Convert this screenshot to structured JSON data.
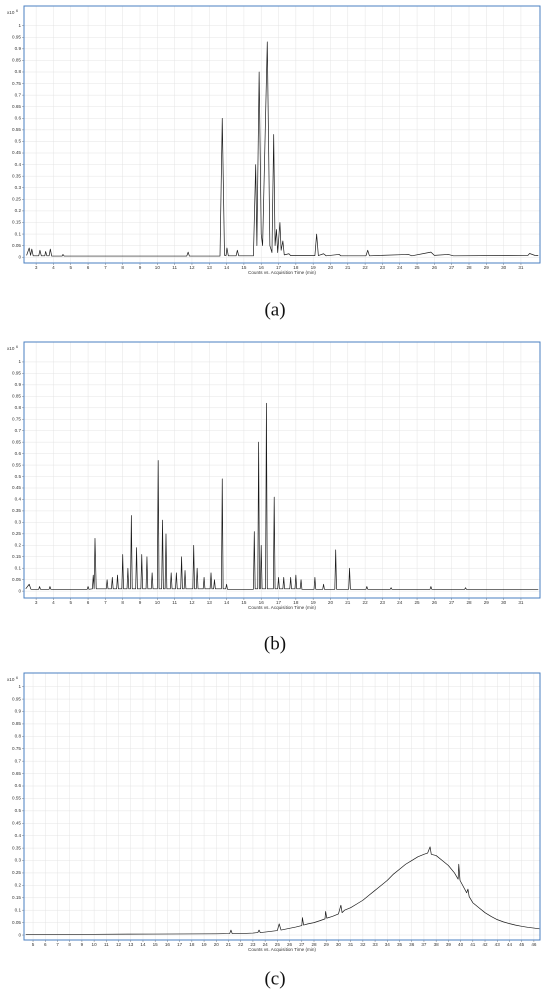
{
  "chart_data": [
    {
      "type": "line",
      "caption": "(a)",
      "xlabel": "Counts vs. Acquisition Time (min)",
      "y_multiplier": "x10",
      "y_multiplier_exponent": "6",
      "grid": true,
      "color": "#1a1a1a",
      "xlim": [
        2.3,
        32.1
      ],
      "ylim": [
        -0.025,
        1.085
      ],
      "xticks": [
        3,
        4,
        5,
        6,
        7,
        8,
        9,
        10,
        11,
        12,
        13,
        14,
        15,
        16,
        17,
        18,
        19,
        20,
        21,
        22,
        23,
        24,
        25,
        26,
        27,
        28,
        29,
        30,
        31
      ],
      "yticks": [
        0,
        0.05,
        0.1,
        0.15,
        0.2,
        0.25,
        0.3,
        0.35,
        0.4,
        0.45,
        0.5,
        0.55,
        0.6,
        0.65,
        0.7,
        0.75,
        0.8,
        0.85,
        0.9,
        0.95,
        1
      ],
      "x": [
        2.45,
        2.6,
        2.68,
        2.75,
        2.83,
        3.15,
        3.22,
        3.3,
        3.5,
        3.55,
        3.62,
        3.75,
        3.82,
        3.9,
        4.5,
        4.55,
        4.62,
        11.7,
        11.78,
        11.85,
        13.62,
        13.75,
        13.88,
        13.97,
        14.02,
        14.1,
        14.55,
        14.62,
        14.7,
        15.55,
        15.68,
        15.75,
        15.88,
        16.0,
        16.08,
        16.35,
        16.5,
        16.62,
        16.72,
        16.8,
        16.88,
        16.95,
        17.08,
        17.15,
        17.25,
        17.33,
        17.6,
        17.7,
        19.1,
        19.2,
        19.3,
        19.6,
        19.75,
        20.5,
        20.6,
        22.05,
        22.15,
        22.25,
        24.5,
        24.7,
        25.8,
        26.0,
        26.8,
        27.1,
        31.4,
        31.5,
        31.8,
        32
      ],
      "values": [
        0.008,
        0.04,
        0.008,
        0.035,
        0.006,
        0.006,
        0.03,
        0.006,
        0.006,
        0.025,
        0.006,
        0.006,
        0.035,
        0.005,
        0.005,
        0.012,
        0.005,
        0.005,
        0.022,
        0.005,
        0.005,
        0.6,
        0.008,
        0.008,
        0.04,
        0.006,
        0.006,
        0.03,
        0.006,
        0.006,
        0.4,
        0.05,
        0.8,
        0.1,
        0.05,
        0.93,
        0.05,
        0.02,
        0.53,
        0.05,
        0.12,
        0.02,
        0.15,
        0.03,
        0.07,
        0.01,
        0.015,
        0.007,
        0.007,
        0.1,
        0.007,
        0.015,
        0.006,
        0.012,
        0.006,
        0.006,
        0.03,
        0.006,
        0.012,
        0.006,
        0.022,
        0.008,
        0.012,
        0.006,
        0.008,
        0.016,
        0.008,
        0.007
      ]
    },
    {
      "type": "line",
      "caption": "(b)",
      "xlabel": "Counts vs. Acquisition Time (min)",
      "y_multiplier": "x10",
      "y_multiplier_exponent": "6",
      "grid": true,
      "color": "#1a1a1a",
      "xlim": [
        2.3,
        32.1
      ],
      "ylim": [
        -0.03,
        1.087
      ],
      "xticks": [
        3,
        4,
        5,
        6,
        7,
        8,
        9,
        10,
        11,
        12,
        13,
        14,
        15,
        16,
        17,
        18,
        19,
        20,
        21,
        22,
        23,
        24,
        25,
        26,
        27,
        28,
        29,
        30,
        31
      ],
      "yticks": [
        0,
        0.05,
        0.1,
        0.15,
        0.2,
        0.25,
        0.3,
        0.35,
        0.4,
        0.45,
        0.5,
        0.55,
        0.6,
        0.65,
        0.7,
        0.75,
        0.8,
        0.85,
        0.9,
        0.95,
        1
      ],
      "x": [
        2.4,
        2.6,
        2.7,
        3.15,
        3.2,
        3.25,
        3.75,
        3.8,
        3.85,
        5.95,
        6.0,
        6.05,
        6.25,
        6.3,
        6.35,
        6.4,
        6.47,
        7.05,
        7.1,
        7.15,
        7.35,
        7.4,
        7.45,
        7.65,
        7.7,
        7.75,
        7.95,
        8.0,
        8.05,
        8.25,
        8.3,
        8.35,
        8.45,
        8.5,
        8.55,
        8.75,
        8.8,
        8.85,
        9.05,
        9.1,
        9.15,
        9.35,
        9.4,
        9.45,
        9.65,
        9.7,
        9.75,
        10.0,
        10.05,
        10.1,
        10.25,
        10.3,
        10.35,
        10.45,
        10.5,
        10.55,
        10.75,
        10.8,
        10.85,
        11.05,
        11.1,
        11.15,
        11.35,
        11.4,
        11.45,
        11.55,
        11.6,
        11.65,
        12.05,
        12.1,
        12.15,
        12.25,
        12.3,
        12.35,
        12.65,
        12.7,
        12.75,
        13.05,
        13.1,
        13.15,
        13.25,
        13.3,
        13.35,
        13.7,
        13.75,
        13.8,
        13.95,
        14.0,
        14.05,
        15.55,
        15.6,
        15.65,
        15.8,
        15.85,
        15.9,
        15.95,
        16.0,
        16.05,
        16.25,
        16.3,
        16.35,
        16.7,
        16.75,
        16.8,
        16.95,
        17.0,
        17.05,
        17.25,
        17.3,
        17.35,
        17.65,
        17.7,
        17.75,
        17.95,
        18.0,
        18.05,
        18.25,
        18.3,
        18.35,
        19.05,
        19.1,
        19.15,
        19.55,
        19.6,
        19.65,
        20.25,
        20.3,
        20.35,
        21.05,
        21.1,
        21.15,
        22.05,
        22.1,
        22.15,
        23.45,
        23.5,
        23.55,
        25.75,
        25.8,
        25.85,
        27.75,
        27.8,
        27.85,
        32
      ],
      "values": [
        0.01,
        0.03,
        0.008,
        0.008,
        0.02,
        0.008,
        0.008,
        0.02,
        0.008,
        0.008,
        0.02,
        0.008,
        0.01,
        0.07,
        0.01,
        0.23,
        0.01,
        0.01,
        0.05,
        0.01,
        0.01,
        0.06,
        0.01,
        0.01,
        0.07,
        0.01,
        0.01,
        0.16,
        0.01,
        0.01,
        0.1,
        0.01,
        0.01,
        0.33,
        0.01,
        0.01,
        0.19,
        0.01,
        0.01,
        0.16,
        0.01,
        0.01,
        0.15,
        0.01,
        0.01,
        0.08,
        0.01,
        0.01,
        0.57,
        0.01,
        0.01,
        0.31,
        0.01,
        0.01,
        0.25,
        0.01,
        0.01,
        0.08,
        0.01,
        0.01,
        0.08,
        0.01,
        0.01,
        0.15,
        0.01,
        0.01,
        0.09,
        0.01,
        0.01,
        0.2,
        0.01,
        0.01,
        0.1,
        0.01,
        0.01,
        0.06,
        0.01,
        0.01,
        0.08,
        0.01,
        0.01,
        0.05,
        0.01,
        0.01,
        0.49,
        0.01,
        0.01,
        0.03,
        0.008,
        0.008,
        0.26,
        0.01,
        0.01,
        0.65,
        0.01,
        0.01,
        0.2,
        0.01,
        0.01,
        0.82,
        0.01,
        0.01,
        0.41,
        0.01,
        0.01,
        0.06,
        0.01,
        0.01,
        0.06,
        0.01,
        0.01,
        0.06,
        0.01,
        0.01,
        0.07,
        0.01,
        0.01,
        0.05,
        0.008,
        0.008,
        0.06,
        0.008,
        0.008,
        0.03,
        0.008,
        0.008,
        0.18,
        0.008,
        0.008,
        0.1,
        0.008,
        0.008,
        0.02,
        0.008,
        0.008,
        0.015,
        0.008,
        0.008,
        0.02,
        0.008,
        0.008,
        0.015,
        0.008,
        0.008
      ]
    },
    {
      "type": "line",
      "caption": "(c)",
      "xlabel": "Counts vs. Acquisition Time (min)",
      "y_multiplier": "x10",
      "y_multiplier_exponent": "6",
      "grid": true,
      "color": "#1a1a1a",
      "xlim": [
        4.26,
        46.5
      ],
      "ylim": [
        -0.02,
        1.055
      ],
      "xticks": [
        5,
        6,
        7,
        8,
        9,
        10,
        11,
        12,
        13,
        14,
        15,
        16,
        17,
        18,
        19,
        20,
        21,
        22,
        23,
        24,
        25,
        26,
        27,
        28,
        29,
        30,
        31,
        32,
        33,
        34,
        35,
        36,
        37,
        38,
        39,
        40,
        41,
        42,
        43,
        44,
        45,
        46
      ],
      "yticks": [
        0,
        0.05,
        0.1,
        0.15,
        0.2,
        0.25,
        0.3,
        0.35,
        0.4,
        0.45,
        0.5,
        0.55,
        0.6,
        0.65,
        0.7,
        0.75,
        0.8,
        0.85,
        0.9,
        0.95,
        1
      ],
      "x": [
        4.4,
        10,
        15,
        20,
        21.1,
        21.2,
        21.3,
        22,
        23,
        23.4,
        23.5,
        23.6,
        24,
        24.5,
        25,
        25.15,
        25.3,
        25.5,
        26,
        26.5,
        27,
        27.05,
        27.15,
        27.5,
        28,
        28.5,
        28.9,
        28.95,
        29.05,
        29.5,
        30,
        30.2,
        30.3,
        30.5,
        31,
        31.5,
        32,
        32.5,
        33,
        33.5,
        34,
        34.5,
        35,
        35.5,
        36,
        36.5,
        37,
        37.3,
        37.5,
        37.6,
        38,
        38.5,
        39,
        39.5,
        39.8,
        39.85,
        39.95,
        40.5,
        40.6,
        40.7,
        41,
        41.5,
        42,
        42.5,
        43,
        43.5,
        44,
        44.5,
        45,
        45.5,
        46,
        46.45
      ],
      "values": [
        0.003,
        0.003,
        0.004,
        0.005,
        0.006,
        0.02,
        0.006,
        0.006,
        0.008,
        0.01,
        0.02,
        0.01,
        0.012,
        0.015,
        0.018,
        0.045,
        0.02,
        0.022,
        0.027,
        0.032,
        0.038,
        0.07,
        0.04,
        0.045,
        0.05,
        0.058,
        0.065,
        0.095,
        0.068,
        0.075,
        0.085,
        0.12,
        0.09,
        0.1,
        0.11,
        0.125,
        0.14,
        0.16,
        0.18,
        0.2,
        0.22,
        0.245,
        0.265,
        0.285,
        0.3,
        0.315,
        0.325,
        0.33,
        0.355,
        0.325,
        0.32,
        0.3,
        0.28,
        0.25,
        0.225,
        0.285,
        0.22,
        0.17,
        0.185,
        0.155,
        0.13,
        0.11,
        0.09,
        0.075,
        0.062,
        0.053,
        0.046,
        0.04,
        0.035,
        0.031,
        0.028,
        0.025
      ]
    }
  ]
}
